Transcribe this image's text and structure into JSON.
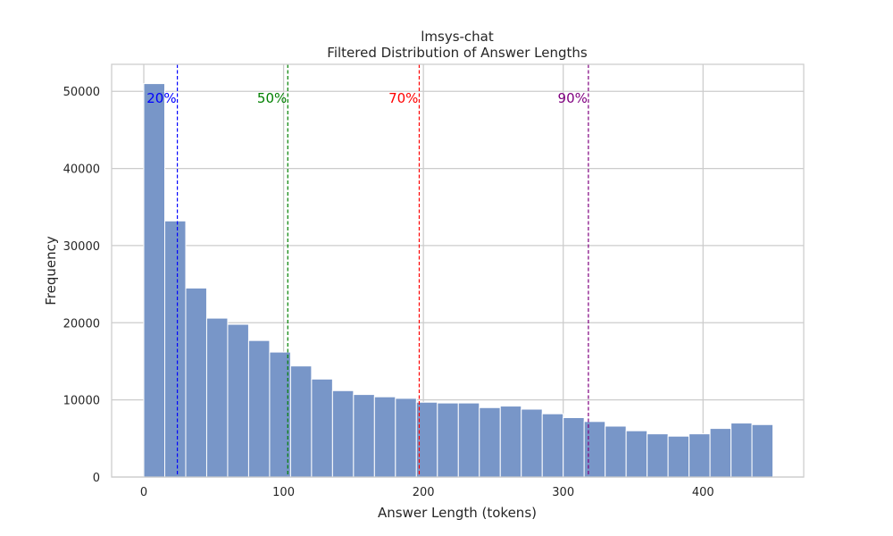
{
  "chart_data": {
    "type": "bar",
    "title": "lmsys-chat",
    "subtitle": "Filtered Distribution of Answer Lengths",
    "xlabel": "Answer Length (tokens)",
    "ylabel": "Frequency",
    "xlim": [
      -23,
      472
    ],
    "ylim": [
      0,
      53500
    ],
    "xticks": [
      0,
      100,
      200,
      300,
      400
    ],
    "yticks": [
      0,
      10000,
      20000,
      30000,
      40000,
      50000
    ],
    "grid": true,
    "bar_color": "#7896c8",
    "bins": [
      {
        "x0": 0,
        "x1": 15,
        "value": 51000
      },
      {
        "x0": 15,
        "x1": 30,
        "value": 33200
      },
      {
        "x0": 30,
        "x1": 45,
        "value": 24500
      },
      {
        "x0": 45,
        "x1": 60,
        "value": 20600
      },
      {
        "x0": 60,
        "x1": 75,
        "value": 19800
      },
      {
        "x0": 75,
        "x1": 90,
        "value": 17700
      },
      {
        "x0": 90,
        "x1": 105,
        "value": 16200
      },
      {
        "x0": 105,
        "x1": 120,
        "value": 14400
      },
      {
        "x0": 120,
        "x1": 135,
        "value": 12700
      },
      {
        "x0": 135,
        "x1": 150,
        "value": 11200
      },
      {
        "x0": 150,
        "x1": 165,
        "value": 10700
      },
      {
        "x0": 165,
        "x1": 180,
        "value": 10400
      },
      {
        "x0": 180,
        "x1": 195,
        "value": 10200
      },
      {
        "x0": 195,
        "x1": 210,
        "value": 9700
      },
      {
        "x0": 210,
        "x1": 225,
        "value": 9600
      },
      {
        "x0": 225,
        "x1": 240,
        "value": 9600
      },
      {
        "x0": 240,
        "x1": 255,
        "value": 9000
      },
      {
        "x0": 255,
        "x1": 270,
        "value": 9200
      },
      {
        "x0": 270,
        "x1": 285,
        "value": 8800
      },
      {
        "x0": 285,
        "x1": 300,
        "value": 8200
      },
      {
        "x0": 300,
        "x1": 315,
        "value": 7700
      },
      {
        "x0": 315,
        "x1": 330,
        "value": 7200
      },
      {
        "x0": 330,
        "x1": 345,
        "value": 6600
      },
      {
        "x0": 345,
        "x1": 360,
        "value": 6000
      },
      {
        "x0": 360,
        "x1": 375,
        "value": 5600
      },
      {
        "x0": 375,
        "x1": 390,
        "value": 5300
      },
      {
        "x0": 390,
        "x1": 405,
        "value": 5600
      },
      {
        "x0": 405,
        "x1": 420,
        "value": 6300
      },
      {
        "x0": 420,
        "x1": 435,
        "value": 7000
      },
      {
        "x0": 435,
        "x1": 450,
        "value": 6800
      }
    ],
    "percentile_lines": [
      {
        "label": "20%",
        "x": 24,
        "color": "#0000ff"
      },
      {
        "label": "50%",
        "x": 103,
        "color": "#008000"
      },
      {
        "label": "70%",
        "x": 197,
        "color": "#ff0000"
      },
      {
        "label": "90%",
        "x": 318,
        "color": "#800080"
      }
    ]
  }
}
